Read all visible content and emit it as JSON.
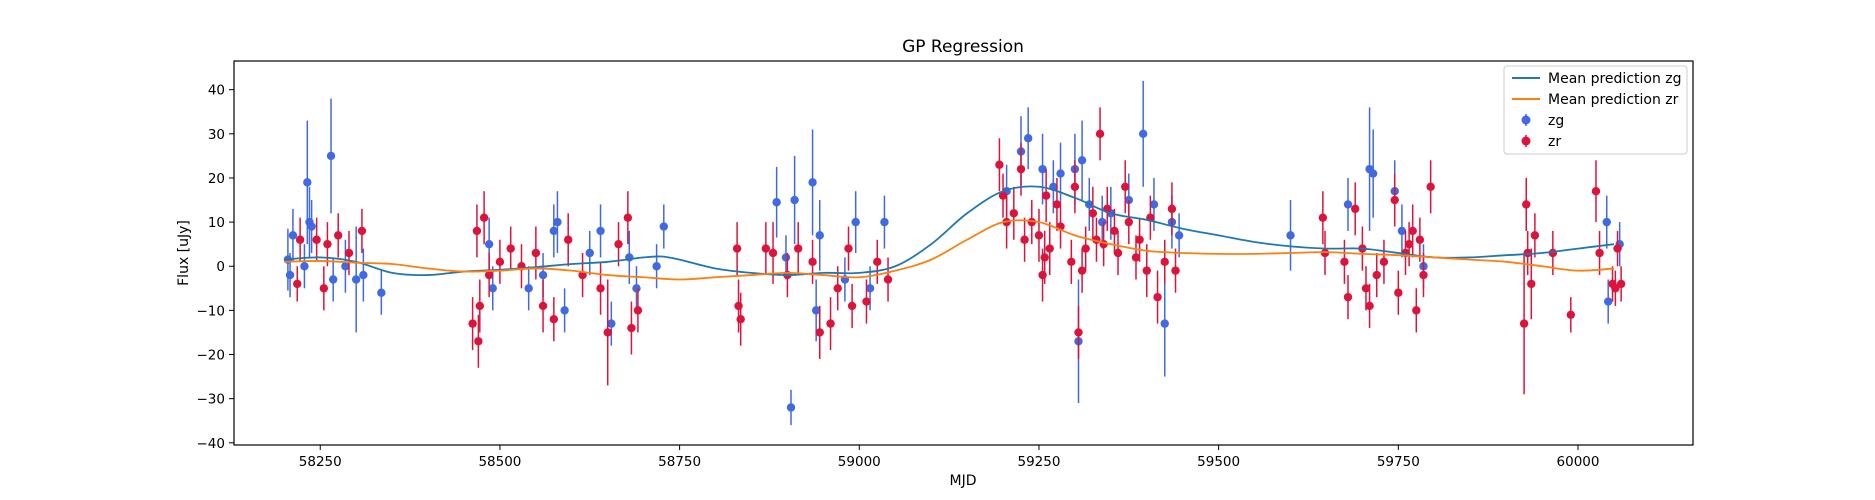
{
  "chart_data": {
    "type": "scatter",
    "title": "GP Regression",
    "xlabel": "MJD",
    "ylabel": "Flux [uJy]",
    "xlim": [
      58130,
      60160
    ],
    "ylim": [
      -40.5,
      46.5
    ],
    "xticks": [
      58250,
      58500,
      58750,
      59000,
      59250,
      59500,
      59750,
      60000
    ],
    "yticks": [
      -40,
      -30,
      -20,
      -10,
      0,
      10,
      20,
      30,
      40
    ],
    "grid": false,
    "legend_position": "top-right",
    "legend": [
      "Mean prediction zg",
      "Mean prediction zr",
      "zg",
      "zr"
    ],
    "colors": {
      "zg_line": "#1f77b4",
      "zr_line": "#ff7f0e",
      "zg_points": "#4169e1",
      "zr_points": "#dc143c"
    },
    "series": [
      {
        "name": "Mean prediction zg",
        "kind": "line",
        "x": [
          58200,
          58250,
          58300,
          58350,
          58400,
          58450,
          58500,
          58550,
          58600,
          58650,
          58700,
          58725,
          58750,
          58800,
          58850,
          58900,
          58950,
          59000,
          59050,
          59100,
          59150,
          59200,
          59250,
          59300,
          59350,
          59400,
          59450,
          59500,
          59550,
          59600,
          59650,
          59700,
          59750,
          59800,
          59850,
          59900,
          59950,
          60000,
          60050
        ],
        "y": [
          1.5,
          2.0,
          1.0,
          -1.5,
          -2.0,
          -1.2,
          -0.8,
          -0.2,
          0.5,
          1.0,
          2.0,
          2.2,
          1.5,
          -0.5,
          -1.5,
          -2.0,
          -1.5,
          -1.5,
          0.0,
          5.0,
          12.0,
          17.0,
          18.0,
          15.5,
          12.0,
          10.5,
          8.5,
          7.0,
          5.5,
          4.5,
          4.0,
          4.0,
          3.0,
          2.0,
          2.0,
          2.5,
          3.0,
          4.0,
          5.0
        ]
      },
      {
        "name": "Mean prediction zr",
        "kind": "line",
        "x": [
          58200,
          58250,
          58300,
          58350,
          58400,
          58450,
          58500,
          58550,
          58600,
          58650,
          58700,
          58750,
          58800,
          58850,
          58900,
          58950,
          59000,
          59050,
          59100,
          59150,
          59200,
          59250,
          59300,
          59350,
          59400,
          59450,
          59500,
          59550,
          59600,
          59650,
          59700,
          59750,
          59800,
          59850,
          59900,
          59950,
          60000,
          60050
        ],
        "y": [
          1.0,
          1.2,
          0.8,
          0.5,
          -0.5,
          -1.2,
          -1.0,
          -0.5,
          -1.0,
          -2.0,
          -2.5,
          -3.0,
          -2.5,
          -2.0,
          -1.5,
          -2.0,
          -2.5,
          -1.0,
          1.5,
          6.0,
          10.0,
          10.0,
          7.0,
          5.0,
          3.5,
          3.0,
          2.8,
          2.8,
          3.0,
          3.2,
          2.8,
          2.5,
          2.0,
          1.5,
          1.0,
          0.0,
          -1.0,
          -0.5
        ]
      },
      {
        "name": "zg",
        "kind": "errorbar",
        "points": [
          {
            "x": 58205,
            "y": 1.5,
            "err": 7
          },
          {
            "x": 58208,
            "y": -2,
            "err": 5
          },
          {
            "x": 58212,
            "y": 7,
            "err": 6
          },
          {
            "x": 58228,
            "y": 0,
            "err": 5
          },
          {
            "x": 58232,
            "y": 19,
            "err": 14
          },
          {
            "x": 58235,
            "y": 10,
            "err": 8
          },
          {
            "x": 58238,
            "y": 9,
            "err": 6
          },
          {
            "x": 58265,
            "y": 25,
            "err": 13
          },
          {
            "x": 58268,
            "y": -3,
            "err": 5
          },
          {
            "x": 58285,
            "y": 0,
            "err": 6
          },
          {
            "x": 58300,
            "y": -3,
            "err": 12
          },
          {
            "x": 58310,
            "y": -2,
            "err": 6
          },
          {
            "x": 58335,
            "y": -6,
            "err": 5
          },
          {
            "x": 58485,
            "y": 5,
            "err": 6
          },
          {
            "x": 58490,
            "y": -5,
            "err": 5
          },
          {
            "x": 58540,
            "y": -5,
            "err": 5
          },
          {
            "x": 58560,
            "y": -2,
            "err": 5
          },
          {
            "x": 58575,
            "y": 8,
            "err": 6
          },
          {
            "x": 58580,
            "y": 10,
            "err": 7
          },
          {
            "x": 58590,
            "y": -10,
            "err": 5
          },
          {
            "x": 58625,
            "y": 3,
            "err": 5
          },
          {
            "x": 58640,
            "y": 8,
            "err": 6
          },
          {
            "x": 58655,
            "y": -13,
            "err": 5
          },
          {
            "x": 58680,
            "y": 2,
            "err": 6
          },
          {
            "x": 58690,
            "y": -5,
            "err": 5
          },
          {
            "x": 58718,
            "y": 0,
            "err": 5
          },
          {
            "x": 58728,
            "y": 9,
            "err": 5
          },
          {
            "x": 58885,
            "y": 14.5,
            "err": 8
          },
          {
            "x": 58898,
            "y": 2,
            "err": 5
          },
          {
            "x": 58905,
            "y": -32,
            "err": 4
          },
          {
            "x": 58910,
            "y": 15,
            "err": 10
          },
          {
            "x": 58935,
            "y": 19,
            "err": 12
          },
          {
            "x": 58940,
            "y": -10,
            "err": 7
          },
          {
            "x": 58945,
            "y": 7,
            "err": 8
          },
          {
            "x": 58980,
            "y": -3,
            "err": 5
          },
          {
            "x": 58995,
            "y": 10,
            "err": 7
          },
          {
            "x": 59015,
            "y": -5,
            "err": 5
          },
          {
            "x": 59035,
            "y": 10,
            "err": 6
          },
          {
            "x": 59205,
            "y": 17,
            "err": 6
          },
          {
            "x": 59225,
            "y": 26,
            "err": 8
          },
          {
            "x": 59235,
            "y": 29,
            "err": 7
          },
          {
            "x": 59255,
            "y": 22,
            "err": 8
          },
          {
            "x": 59270,
            "y": 18,
            "err": 6
          },
          {
            "x": 59280,
            "y": 21,
            "err": 7
          },
          {
            "x": 59300,
            "y": 22,
            "err": 8
          },
          {
            "x": 59305,
            "y": -17,
            "err": 14
          },
          {
            "x": 59310,
            "y": 24,
            "err": 9
          },
          {
            "x": 59320,
            "y": 14,
            "err": 6
          },
          {
            "x": 59338,
            "y": 10,
            "err": 6
          },
          {
            "x": 59350,
            "y": 12,
            "err": 6
          },
          {
            "x": 59375,
            "y": 15,
            "err": 6
          },
          {
            "x": 59395,
            "y": 30,
            "err": 12
          },
          {
            "x": 59410,
            "y": 14,
            "err": 6
          },
          {
            "x": 59425,
            "y": -13,
            "err": 12
          },
          {
            "x": 59435,
            "y": 10,
            "err": 6
          },
          {
            "x": 59445,
            "y": 7,
            "err": 5
          },
          {
            "x": 59600,
            "y": 7,
            "err": 8
          },
          {
            "x": 59680,
            "y": 14,
            "err": 6
          },
          {
            "x": 59710,
            "y": 22,
            "err": 14
          },
          {
            "x": 59715,
            "y": 21,
            "err": 10
          },
          {
            "x": 59745,
            "y": 17,
            "err": 7
          },
          {
            "x": 59755,
            "y": 8,
            "err": 6
          },
          {
            "x": 59785,
            "y": 0,
            "err": 5
          },
          {
            "x": 60040,
            "y": 10,
            "err": 6
          },
          {
            "x": 60042,
            "y": -8,
            "err": 5
          },
          {
            "x": 60058,
            "y": 5,
            "err": 5
          }
        ]
      },
      {
        "name": "zr",
        "kind": "errorbar",
        "points": [
          {
            "x": 58218,
            "y": -4,
            "err": 4
          },
          {
            "x": 58222,
            "y": 6,
            "err": 5
          },
          {
            "x": 58245,
            "y": 6,
            "err": 5
          },
          {
            "x": 58255,
            "y": -5,
            "err": 5
          },
          {
            "x": 58260,
            "y": 5,
            "err": 5
          },
          {
            "x": 58275,
            "y": 7,
            "err": 5
          },
          {
            "x": 58290,
            "y": 3,
            "err": 5
          },
          {
            "x": 58308,
            "y": 8,
            "err": 5
          },
          {
            "x": 58462,
            "y": -13,
            "err": 6
          },
          {
            "x": 58468,
            "y": 8,
            "err": 6
          },
          {
            "x": 58470,
            "y": -17,
            "err": 6
          },
          {
            "x": 58472,
            "y": -9,
            "err": 6
          },
          {
            "x": 58478,
            "y": 11,
            "err": 6
          },
          {
            "x": 58485,
            "y": -2,
            "err": 5
          },
          {
            "x": 58500,
            "y": 1,
            "err": 5
          },
          {
            "x": 58515,
            "y": 4,
            "err": 5
          },
          {
            "x": 58530,
            "y": 0,
            "err": 5
          },
          {
            "x": 58550,
            "y": 3,
            "err": 6
          },
          {
            "x": 58560,
            "y": -9,
            "err": 6
          },
          {
            "x": 58575,
            "y": -12,
            "err": 5
          },
          {
            "x": 58595,
            "y": 6,
            "err": 6
          },
          {
            "x": 58615,
            "y": -2,
            "err": 5
          },
          {
            "x": 58640,
            "y": -5,
            "err": 6
          },
          {
            "x": 58650,
            "y": -15,
            "err": 12
          },
          {
            "x": 58665,
            "y": 5,
            "err": 5
          },
          {
            "x": 58678,
            "y": 11,
            "err": 6
          },
          {
            "x": 58683,
            "y": -14,
            "err": 6
          },
          {
            "x": 58692,
            "y": -10,
            "err": 5
          },
          {
            "x": 58830,
            "y": 4,
            "err": 6
          },
          {
            "x": 58832,
            "y": -9,
            "err": 6
          },
          {
            "x": 58835,
            "y": -12,
            "err": 6
          },
          {
            "x": 58870,
            "y": 4,
            "err": 6
          },
          {
            "x": 58880,
            "y": 3,
            "err": 7
          },
          {
            "x": 58900,
            "y": -2,
            "err": 5
          },
          {
            "x": 58915,
            "y": 4,
            "err": 6
          },
          {
            "x": 58935,
            "y": 1,
            "err": 5
          },
          {
            "x": 58945,
            "y": -15,
            "err": 6
          },
          {
            "x": 58960,
            "y": -13,
            "err": 6
          },
          {
            "x": 58970,
            "y": -5,
            "err": 5
          },
          {
            "x": 58985,
            "y": 4,
            "err": 5
          },
          {
            "x": 58990,
            "y": -9,
            "err": 5
          },
          {
            "x": 59010,
            "y": -8,
            "err": 5
          },
          {
            "x": 59025,
            "y": 1,
            "err": 5
          },
          {
            "x": 59040,
            "y": -3,
            "err": 5
          },
          {
            "x": 59195,
            "y": 23,
            "err": 6
          },
          {
            "x": 59200,
            "y": 16,
            "err": 5
          },
          {
            "x": 59205,
            "y": 10,
            "err": 6
          },
          {
            "x": 59215,
            "y": 12,
            "err": 6
          },
          {
            "x": 59225,
            "y": 22,
            "err": 6
          },
          {
            "x": 59230,
            "y": 6,
            "err": 5
          },
          {
            "x": 59240,
            "y": 10,
            "err": 5
          },
          {
            "x": 59250,
            "y": 7,
            "err": 6
          },
          {
            "x": 59255,
            "y": -2,
            "err": 6
          },
          {
            "x": 59258,
            "y": 2,
            "err": 6
          },
          {
            "x": 59260,
            "y": 16,
            "err": 6
          },
          {
            "x": 59265,
            "y": 4,
            "err": 6
          },
          {
            "x": 59275,
            "y": 14,
            "err": 6
          },
          {
            "x": 59280,
            "y": 9,
            "err": 5
          },
          {
            "x": 59295,
            "y": 1,
            "err": 5
          },
          {
            "x": 59300,
            "y": 18,
            "err": 6
          },
          {
            "x": 59305,
            "y": -15,
            "err": 6
          },
          {
            "x": 59310,
            "y": -1,
            "err": 5
          },
          {
            "x": 59315,
            "y": 4,
            "err": 5
          },
          {
            "x": 59325,
            "y": 12,
            "err": 6
          },
          {
            "x": 59330,
            "y": 6,
            "err": 5
          },
          {
            "x": 59335,
            "y": 30,
            "err": 6
          },
          {
            "x": 59340,
            "y": 5,
            "err": 5
          },
          {
            "x": 59345,
            "y": 13,
            "err": 5
          },
          {
            "x": 59355,
            "y": 8,
            "err": 5
          },
          {
            "x": 59360,
            "y": 3,
            "err": 5
          },
          {
            "x": 59370,
            "y": 18,
            "err": 6
          },
          {
            "x": 59375,
            "y": 10,
            "err": 5
          },
          {
            "x": 59385,
            "y": 2,
            "err": 5
          },
          {
            "x": 59390,
            "y": 6,
            "err": 5
          },
          {
            "x": 59400,
            "y": -1,
            "err": 6
          },
          {
            "x": 59405,
            "y": 11,
            "err": 5
          },
          {
            "x": 59415,
            "y": -7,
            "err": 6
          },
          {
            "x": 59425,
            "y": 1,
            "err": 5
          },
          {
            "x": 59435,
            "y": 13,
            "err": 6
          },
          {
            "x": 59440,
            "y": -1,
            "err": 5
          },
          {
            "x": 59645,
            "y": 11,
            "err": 6
          },
          {
            "x": 59648,
            "y": 3,
            "err": 5
          },
          {
            "x": 59675,
            "y": 1,
            "err": 5
          },
          {
            "x": 59680,
            "y": -7,
            "err": 5
          },
          {
            "x": 59690,
            "y": 13,
            "err": 6
          },
          {
            "x": 59700,
            "y": 4,
            "err": 5
          },
          {
            "x": 59705,
            "y": -5,
            "err": 5
          },
          {
            "x": 59710,
            "y": -9,
            "err": 5
          },
          {
            "x": 59720,
            "y": -2,
            "err": 5
          },
          {
            "x": 59730,
            "y": 1,
            "err": 5
          },
          {
            "x": 59745,
            "y": 15,
            "err": 6
          },
          {
            "x": 59750,
            "y": -6,
            "err": 5
          },
          {
            "x": 59760,
            "y": 3,
            "err": 5
          },
          {
            "x": 59765,
            "y": 5,
            "err": 5
          },
          {
            "x": 59770,
            "y": 8,
            "err": 6
          },
          {
            "x": 59775,
            "y": -10,
            "err": 5
          },
          {
            "x": 59780,
            "y": 6,
            "err": 5
          },
          {
            "x": 59785,
            "y": -2,
            "err": 5
          },
          {
            "x": 59795,
            "y": 18,
            "err": 6
          },
          {
            "x": 59925,
            "y": -13,
            "err": 16
          },
          {
            "x": 59928,
            "y": 14,
            "err": 6
          },
          {
            "x": 59930,
            "y": 3,
            "err": 5
          },
          {
            "x": 59935,
            "y": -4,
            "err": 8
          },
          {
            "x": 59940,
            "y": 7,
            "err": 5
          },
          {
            "x": 59965,
            "y": 3,
            "err": 5
          },
          {
            "x": 59990,
            "y": -11,
            "err": 4
          },
          {
            "x": 60030,
            "y": 3,
            "err": 5
          },
          {
            "x": 60025,
            "y": 17,
            "err": 7
          },
          {
            "x": 60048,
            "y": -4,
            "err": 4
          },
          {
            "x": 60052,
            "y": -5,
            "err": 4
          },
          {
            "x": 60055,
            "y": 4,
            "err": 4
          },
          {
            "x": 60060,
            "y": -4,
            "err": 4
          }
        ]
      }
    ]
  }
}
